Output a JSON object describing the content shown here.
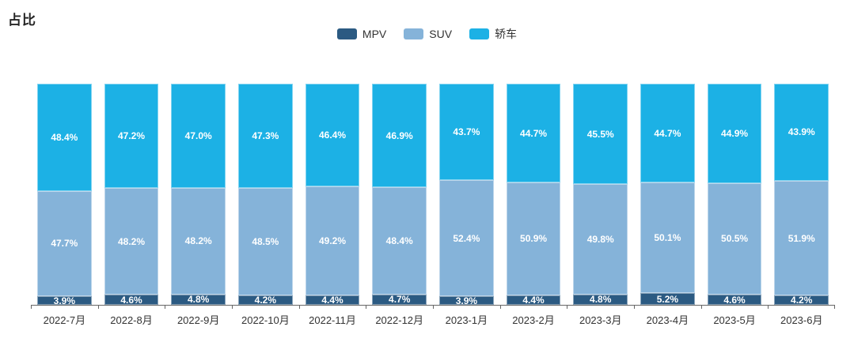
{
  "title": "占比",
  "axis": {
    "line_color": "#666666",
    "label_color": "#333333"
  },
  "chart_data": {
    "type": "bar",
    "stacked": true,
    "unit": "%",
    "title": "占比",
    "legend_position": "top-center",
    "grid": false,
    "ylim": [
      0,
      100
    ],
    "categories": [
      "2022-7月",
      "2022-8月",
      "2022-9月",
      "2022-10月",
      "2022-11月",
      "2022-12月",
      "2023-1月",
      "2023-2月",
      "2023-3月",
      "2023-4月",
      "2023-5月",
      "2023-6月"
    ],
    "series": [
      {
        "name": "MPV",
        "color": "#2b5a82",
        "values": [
          3.9,
          4.6,
          4.8,
          4.2,
          4.4,
          4.7,
          3.9,
          4.4,
          4.8,
          5.2,
          4.6,
          4.2
        ],
        "labels": [
          "3.9%",
          "4.6%",
          "4.8%",
          "4.2%",
          "4.4%",
          "4.7%",
          "3.9%",
          "4.4%",
          "4.8%",
          "5.2%",
          "4.6%",
          "4.2%"
        ]
      },
      {
        "name": "SUV",
        "color": "#85b3d9",
        "values": [
          47.7,
          48.2,
          48.2,
          48.5,
          49.2,
          48.4,
          52.4,
          50.9,
          49.8,
          50.1,
          50.5,
          51.9
        ],
        "labels": [
          "47.7%",
          "48.2%",
          "48.2%",
          "48.5%",
          "49.2%",
          "48.4%",
          "52.4%",
          "50.9%",
          "49.8%",
          "50.1%",
          "50.5%",
          "51.9%"
        ]
      },
      {
        "name": "轿车",
        "color": "#1cb1e5",
        "values": [
          48.4,
          47.2,
          47.0,
          47.3,
          46.4,
          46.9,
          43.7,
          44.7,
          45.5,
          44.7,
          44.9,
          43.9
        ],
        "labels": [
          "48.4%",
          "47.2%",
          "47.0%",
          "47.3%",
          "46.4%",
          "46.9%",
          "43.7%",
          "44.7%",
          "45.5%",
          "44.7%",
          "44.9%",
          "43.9%"
        ]
      }
    ]
  }
}
